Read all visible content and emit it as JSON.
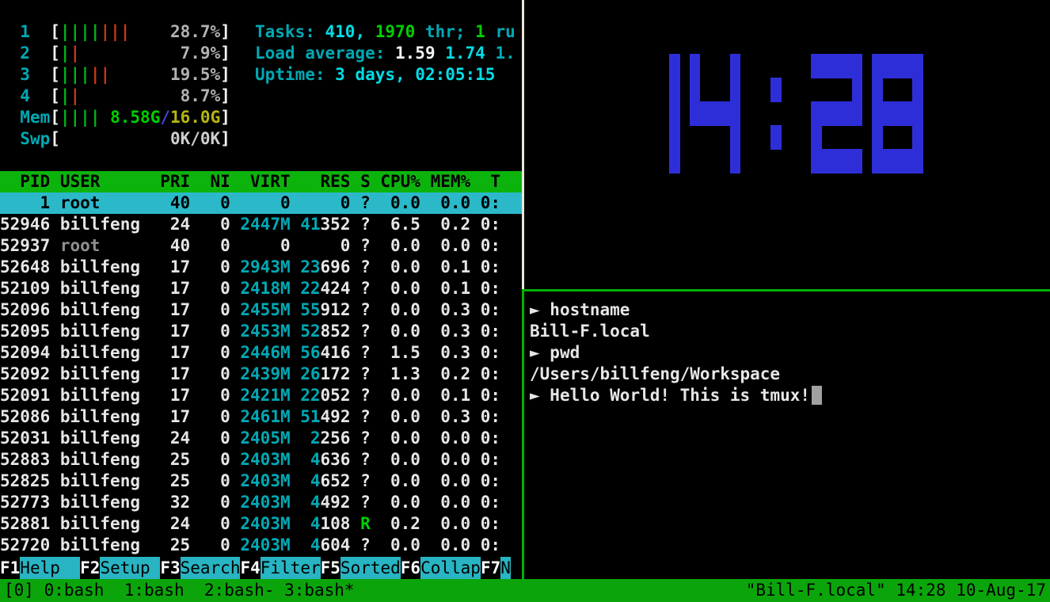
{
  "htop": {
    "meters": [
      {
        "name": "cpu1",
        "label": "1",
        "segments": [
          {
            "t": "||||",
            "c": "green"
          },
          {
            "t": "|||",
            "c": "red"
          },
          {
            "t": "    ",
            "c": "none"
          },
          {
            "t": "28.7%",
            "c": "pct"
          }
        ]
      },
      {
        "name": "cpu2",
        "label": "2",
        "segments": [
          {
            "t": "|",
            "c": "green"
          },
          {
            "t": "|",
            "c": "red"
          },
          {
            "t": "          ",
            "c": "none"
          },
          {
            "t": "7.9%",
            "c": "pct"
          }
        ]
      },
      {
        "name": "cpu3",
        "label": "3",
        "segments": [
          {
            "t": "|||",
            "c": "green"
          },
          {
            "t": "||",
            "c": "red"
          },
          {
            "t": "      ",
            "c": "none"
          },
          {
            "t": "19.5%",
            "c": "pct"
          }
        ]
      },
      {
        "name": "cpu4",
        "label": "4",
        "segments": [
          {
            "t": "|",
            "c": "green"
          },
          {
            "t": "|",
            "c": "red"
          },
          {
            "t": "          ",
            "c": "none"
          },
          {
            "t": "8.7%",
            "c": "pct"
          }
        ]
      },
      {
        "name": "mem",
        "label": "Mem",
        "segments": [
          {
            "t": "||||",
            "c": "green"
          },
          {
            "t": " ",
            "c": "none"
          },
          {
            "t": "8.58G",
            "c": "bgreen"
          },
          {
            "t": "/",
            "c": "blue"
          },
          {
            "t": "16.0G",
            "c": "yellow"
          }
        ]
      },
      {
        "name": "swap",
        "label": "Swp",
        "segments": [
          {
            "t": "           ",
            "c": "none"
          },
          {
            "t": "0K/0K",
            "c": "swpv"
          }
        ]
      }
    ],
    "summary": {
      "tasks": [
        {
          "t": "Tasks: ",
          "c": "cyan"
        },
        {
          "t": "410, ",
          "c": "bcyan"
        },
        {
          "t": "1970",
          "c": "bgreen"
        },
        {
          "t": " thr; ",
          "c": "cyan"
        },
        {
          "t": "1",
          "c": "bgreen"
        },
        {
          "t": " ru",
          "c": "cyan"
        }
      ],
      "load": [
        {
          "t": "Load average: ",
          "c": "cyan"
        },
        {
          "t": "1.59 ",
          "c": "white"
        },
        {
          "t": "1.74 ",
          "c": "bcyan"
        },
        {
          "t": "1.",
          "c": "cyan"
        }
      ],
      "uptime": [
        {
          "t": "Uptime: ",
          "c": "cyan"
        },
        {
          "t": "3 days, 02:05:15",
          "c": "bcyan"
        }
      ]
    },
    "table": {
      "headers": [
        "PID",
        "USER",
        "PRI",
        "NI",
        "VIRT",
        "RES",
        "S",
        "CPU%",
        "MEM%",
        "T"
      ],
      "rows": [
        {
          "pid": "1",
          "user": "root",
          "pri": "40",
          "ni": "0",
          "virt": "0",
          "res_hi": "",
          "res_lo": "0",
          "s": "?",
          "cpu": "0.0",
          "mem": "0.0",
          "time": "0:",
          "selected": true,
          "dim_user": false,
          "virt_cyan": false
        },
        {
          "pid": "52946",
          "user": "billfeng",
          "pri": "24",
          "ni": "0",
          "virt": "2447M",
          "res_hi": "41",
          "res_lo": "352",
          "s": "?",
          "cpu": "6.5",
          "mem": "0.2",
          "time": "0:",
          "selected": false,
          "dim_user": false,
          "virt_cyan": true
        },
        {
          "pid": "52937",
          "user": "root",
          "pri": "40",
          "ni": "0",
          "virt": "0",
          "res_hi": "",
          "res_lo": "0",
          "s": "?",
          "cpu": "0.0",
          "mem": "0.0",
          "time": "0:",
          "selected": false,
          "dim_user": true,
          "virt_cyan": false
        },
        {
          "pid": "52648",
          "user": "billfeng",
          "pri": "17",
          "ni": "0",
          "virt": "2943M",
          "res_hi": "23",
          "res_lo": "696",
          "s": "?",
          "cpu": "0.0",
          "mem": "0.1",
          "time": "0:",
          "selected": false,
          "dim_user": false,
          "virt_cyan": true
        },
        {
          "pid": "52109",
          "user": "billfeng",
          "pri": "17",
          "ni": "0",
          "virt": "2418M",
          "res_hi": "22",
          "res_lo": "424",
          "s": "?",
          "cpu": "0.0",
          "mem": "0.1",
          "time": "0:",
          "selected": false,
          "dim_user": false,
          "virt_cyan": true
        },
        {
          "pid": "52096",
          "user": "billfeng",
          "pri": "17",
          "ni": "0",
          "virt": "2455M",
          "res_hi": "55",
          "res_lo": "912",
          "s": "?",
          "cpu": "0.0",
          "mem": "0.3",
          "time": "0:",
          "selected": false,
          "dim_user": false,
          "virt_cyan": true
        },
        {
          "pid": "52095",
          "user": "billfeng",
          "pri": "17",
          "ni": "0",
          "virt": "2453M",
          "res_hi": "52",
          "res_lo": "852",
          "s": "?",
          "cpu": "0.0",
          "mem": "0.3",
          "time": "0:",
          "selected": false,
          "dim_user": false,
          "virt_cyan": true
        },
        {
          "pid": "52094",
          "user": "billfeng",
          "pri": "17",
          "ni": "0",
          "virt": "2446M",
          "res_hi": "56",
          "res_lo": "416",
          "s": "?",
          "cpu": "1.5",
          "mem": "0.3",
          "time": "0:",
          "selected": false,
          "dim_user": false,
          "virt_cyan": true
        },
        {
          "pid": "52092",
          "user": "billfeng",
          "pri": "17",
          "ni": "0",
          "virt": "2439M",
          "res_hi": "26",
          "res_lo": "172",
          "s": "?",
          "cpu": "1.3",
          "mem": "0.2",
          "time": "0:",
          "selected": false,
          "dim_user": false,
          "virt_cyan": true
        },
        {
          "pid": "52091",
          "user": "billfeng",
          "pri": "17",
          "ni": "0",
          "virt": "2421M",
          "res_hi": "22",
          "res_lo": "052",
          "s": "?",
          "cpu": "0.0",
          "mem": "0.1",
          "time": "0:",
          "selected": false,
          "dim_user": false,
          "virt_cyan": true
        },
        {
          "pid": "52086",
          "user": "billfeng",
          "pri": "17",
          "ni": "0",
          "virt": "2461M",
          "res_hi": "51",
          "res_lo": "492",
          "s": "?",
          "cpu": "0.0",
          "mem": "0.3",
          "time": "0:",
          "selected": false,
          "dim_user": false,
          "virt_cyan": true
        },
        {
          "pid": "52031",
          "user": "billfeng",
          "pri": "24",
          "ni": "0",
          "virt": "2405M",
          "res_hi": "2",
          "res_lo": "256",
          "s": "?",
          "cpu": "0.0",
          "mem": "0.0",
          "time": "0:",
          "selected": false,
          "dim_user": false,
          "virt_cyan": true
        },
        {
          "pid": "52883",
          "user": "billfeng",
          "pri": "25",
          "ni": "0",
          "virt": "2403M",
          "res_hi": "4",
          "res_lo": "636",
          "s": "?",
          "cpu": "0.0",
          "mem": "0.0",
          "time": "0:",
          "selected": false,
          "dim_user": false,
          "virt_cyan": true
        },
        {
          "pid": "52825",
          "user": "billfeng",
          "pri": "25",
          "ni": "0",
          "virt": "2403M",
          "res_hi": "4",
          "res_lo": "652",
          "s": "?",
          "cpu": "0.0",
          "mem": "0.0",
          "time": "0:",
          "selected": false,
          "dim_user": false,
          "virt_cyan": true
        },
        {
          "pid": "52773",
          "user": "billfeng",
          "pri": "32",
          "ni": "0",
          "virt": "2403M",
          "res_hi": "4",
          "res_lo": "492",
          "s": "?",
          "cpu": "0.0",
          "mem": "0.0",
          "time": "0:",
          "selected": false,
          "dim_user": false,
          "virt_cyan": true
        },
        {
          "pid": "52881",
          "user": "billfeng",
          "pri": "24",
          "ni": "0",
          "virt": "2403M",
          "res_hi": "4",
          "res_lo": "108",
          "s": "R",
          "cpu": "0.2",
          "mem": "0.0",
          "time": "0:",
          "selected": false,
          "dim_user": false,
          "virt_cyan": true
        },
        {
          "pid": "52720",
          "user": "billfeng",
          "pri": "25",
          "ni": "0",
          "virt": "2403M",
          "res_hi": "4",
          "res_lo": "604",
          "s": "?",
          "cpu": "0.0",
          "mem": "0.0",
          "time": "0:",
          "selected": false,
          "dim_user": false,
          "virt_cyan": true
        }
      ]
    },
    "fkeys": [
      {
        "key": "F1",
        "label": "Help  "
      },
      {
        "key": "F2",
        "label": "Setup "
      },
      {
        "key": "F3",
        "label": "Search"
      },
      {
        "key": "F4",
        "label": "Filter"
      },
      {
        "key": "F5",
        "label": "Sorted"
      },
      {
        "key": "F6",
        "label": "Collap"
      },
      {
        "key": "F7",
        "label": "N"
      }
    ]
  },
  "clock": {
    "time": "14:28"
  },
  "terminal": {
    "prompt_symbol": "►",
    "lines": [
      {
        "prompt": true,
        "text": "hostname",
        "cursor": false
      },
      {
        "prompt": false,
        "text": "Bill-F.local",
        "cursor": false
      },
      {
        "prompt": true,
        "text": "pwd",
        "cursor": false
      },
      {
        "prompt": false,
        "text": "/Users/billfeng/Workspace",
        "cursor": false
      },
      {
        "prompt": true,
        "text": "Hello World! This is tmux!",
        "cursor": true
      }
    ]
  },
  "status": {
    "session": "[0]",
    "windows": [
      {
        "label": "0:bash",
        "pre": " "
      },
      {
        "label": "1:bash",
        "pre": "  "
      },
      {
        "label": "2:bash-",
        "pre": "  "
      },
      {
        "label": "3:bash*",
        "pre": " "
      }
    ],
    "right": "\"Bill-F.local\" 14:28 10-Aug-17"
  },
  "colors": {
    "white": "#e6e6e6",
    "bright_white": "#f2f2f2",
    "gray": "#909090",
    "pct_gray": "#b2b2b2",
    "swap_value_gray": "#cfcfcf",
    "cyan": "#00a9b4",
    "bright_cyan": "#00dde6",
    "green": "#00b418",
    "bright_green": "#00cf00",
    "red": "#c93715",
    "yellow": "#b5b513",
    "blue": "#4444d0",
    "header_green": "#0db30d",
    "selection_cyan": "#2bb9c9",
    "fkey_cyan": "#28b4c2",
    "status_green": "#0ba50b",
    "border_white": "#eae7d9",
    "border_green": "#00b200",
    "clock_blue": "#2e2ed8",
    "cursor_gray": "#a0a0a0"
  }
}
